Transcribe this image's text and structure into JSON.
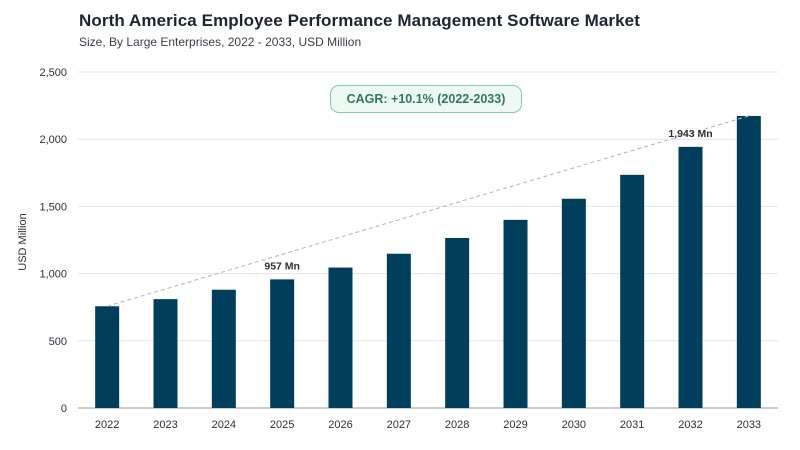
{
  "header": {
    "title": "North America Employee Performance Management Software Market",
    "subtitle": "Size, By Large Enterprises, 2022 - 2033, USD Million"
  },
  "badge": {
    "text": "CAGR: +10.1% (2022-2033)"
  },
  "colors": {
    "bar": "#003f5c",
    "grid": "#e5e5e5",
    "trend": "#b3b3b3",
    "badge_border": "#7fcdb0",
    "badge_text": "#2b7a62"
  },
  "chart_data": {
    "type": "bar",
    "title": "North America Employee Performance Management Software Market",
    "subtitle": "Size, By Large Enterprises, 2022 - 2033, USD Million",
    "xlabel": "",
    "ylabel": "USD Million",
    "categories": [
      "2022",
      "2023",
      "2024",
      "2025",
      "2026",
      "2027",
      "2028",
      "2029",
      "2030",
      "2031",
      "2032",
      "2033"
    ],
    "values": [
      757,
      810,
      880,
      957,
      1045,
      1148,
      1265,
      1400,
      1557,
      1735,
      1943,
      2173
    ],
    "ylim": [
      0,
      2500
    ],
    "yticks": [
      0,
      500,
      1000,
      1500,
      2000,
      2500
    ],
    "ytick_labels": [
      "0",
      "500",
      "1,000",
      "1,500",
      "2,000",
      "2,500"
    ],
    "annotations": [
      {
        "index": 3,
        "text": "957 Mn"
      },
      {
        "index": 10,
        "text": "1,943 Mn"
      }
    ],
    "trendline": true,
    "grid": true
  }
}
